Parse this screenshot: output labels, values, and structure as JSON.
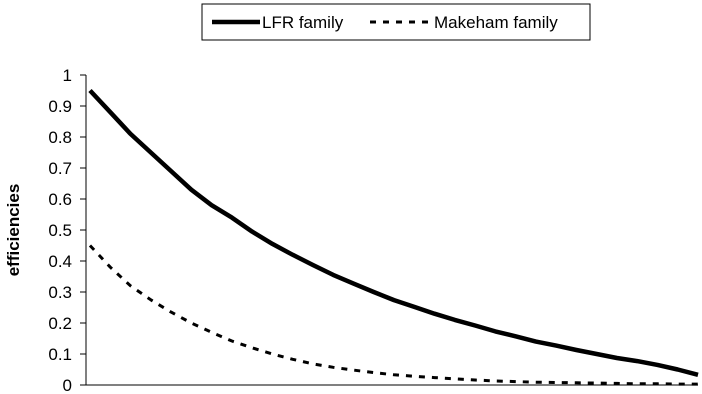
{
  "chart_data": {
    "type": "line",
    "title": "",
    "xlabel": "",
    "ylabel": "efficiencies",
    "ylim": [
      0,
      1
    ],
    "yticks": [
      "0",
      "0.1",
      "0.2",
      "0.3",
      "0.4",
      "0.5",
      "0.6",
      "0.7",
      "0.8",
      "0.9",
      "1"
    ],
    "grid": false,
    "legend_position": "top-center",
    "x": [
      0,
      1,
      2,
      3,
      4,
      5,
      6,
      7,
      8,
      9,
      10,
      11,
      12,
      13,
      14,
      15,
      16,
      17,
      18,
      19,
      20,
      21,
      22,
      23,
      24,
      25,
      26,
      27,
      28,
      29,
      30
    ],
    "series": [
      {
        "name": "LFR family",
        "style": "solid",
        "color": "#000000",
        "values": [
          0.95,
          0.88,
          0.81,
          0.75,
          0.69,
          0.63,
          0.58,
          0.54,
          0.495,
          0.455,
          0.42,
          0.387,
          0.355,
          0.327,
          0.3,
          0.274,
          0.252,
          0.23,
          0.21,
          0.192,
          0.173,
          0.157,
          0.14,
          0.127,
          0.113,
          0.1,
          0.087,
          0.077,
          0.065,
          0.05,
          0.033
        ]
      },
      {
        "name": "Makeham family",
        "style": "dashed",
        "color": "#000000",
        "values": [
          0.45,
          0.38,
          0.32,
          0.275,
          0.235,
          0.2,
          0.17,
          0.142,
          0.12,
          0.1,
          0.083,
          0.068,
          0.057,
          0.048,
          0.04,
          0.033,
          0.028,
          0.024,
          0.02,
          0.016,
          0.013,
          0.011,
          0.009,
          0.008,
          0.007,
          0.006,
          0.005,
          0.004,
          0.004,
          0.003,
          0.003
        ]
      }
    ]
  }
}
